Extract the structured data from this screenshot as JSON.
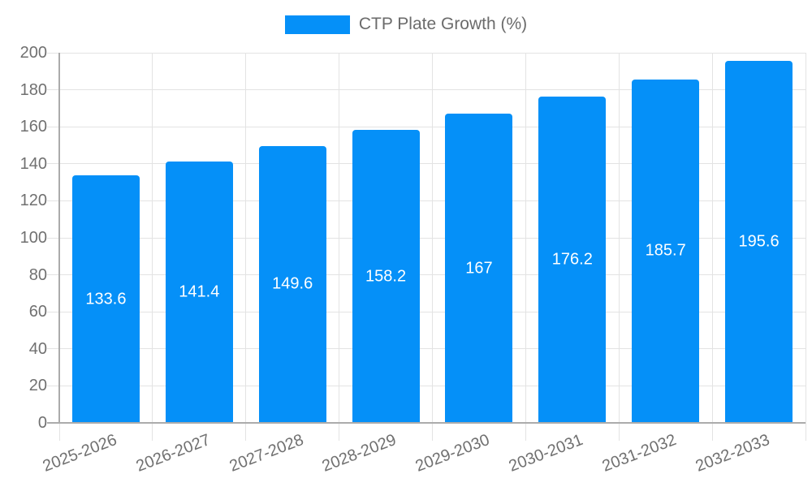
{
  "chart_data": {
    "type": "bar",
    "title": "",
    "legend": {
      "label": "CTP Plate Growth (%)",
      "position": "top"
    },
    "categories": [
      "2025-2026",
      "2026-2027",
      "2027-2028",
      "2028-2029",
      "2029-2030",
      "2030-2031",
      "2031-2032",
      "2032-2033"
    ],
    "series": [
      {
        "name": "CTP Plate Growth (%)",
        "values": [
          133.6,
          141.4,
          149.6,
          158.2,
          167,
          176.2,
          185.7,
          195.6
        ],
        "value_labels": [
          "133.6",
          "141.4",
          "149.6",
          "158.2",
          "167",
          "176.2",
          "185.7",
          "195.6"
        ]
      }
    ],
    "xlabel": "",
    "ylabel": "",
    "ylim": [
      0,
      200
    ],
    "yticks": [
      0,
      20,
      40,
      60,
      80,
      100,
      120,
      140,
      160,
      180,
      200
    ],
    "grid": true,
    "colors": {
      "bar": "#0590F8",
      "grid": "#E3E3E3",
      "axis": "#ABABAB",
      "tick_text": "#707070",
      "legend_text": "#6B6B6B",
      "bar_label": "#FFFFFF",
      "background": "#FFFFFF"
    }
  }
}
